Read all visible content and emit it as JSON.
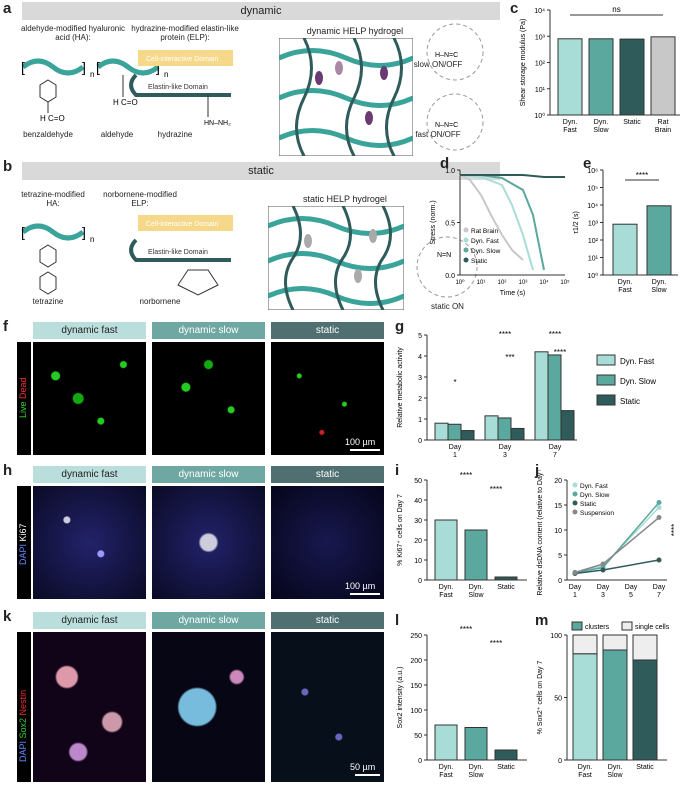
{
  "panels": {
    "a": "a",
    "b": "b",
    "c": "c",
    "d": "d",
    "e": "e",
    "f": "f",
    "g": "g",
    "h": "h",
    "i": "i",
    "j": "j",
    "k": "k",
    "l": "l",
    "m": "m"
  },
  "a": {
    "banner": "dynamic",
    "ha_label": "aldehyde-modified hyaluronic acid (HA):",
    "elp_label": "hydrazine-modified elastin-like protein (ELP):",
    "benzaldehyde": "benzaldehyde",
    "aldehyde": "aldehyde",
    "hydrazine": "hydrazine",
    "cell_domain": "Cell-interactive Domain",
    "elastin_domain": "Elastin-like Domain",
    "hydrogel_title": "dynamic HELP hydrogel",
    "slow": "slow ON/OFF",
    "fast": "fast ON/OFF"
  },
  "b": {
    "banner": "static",
    "ha_label": "tetrazine-modified HA:",
    "elp_label": "norbornene-modified ELP:",
    "tetrazine": "tetrazine",
    "norbornene": "norbornene",
    "cell_domain": "Cell-interactive Domain",
    "elastin_domain": "Elastin-like Domain",
    "hydrogel_title": "static HELP hydrogel",
    "static_on": "static ON"
  },
  "image_headers": {
    "fast": "dynamic fast",
    "slow": "dynamic slow",
    "static": "static"
  },
  "f": {
    "live": "Live",
    "dead": "Dead",
    "scale": "100 µm"
  },
  "h": {
    "dapi": "DAPI",
    "ki67": "Ki67",
    "scale": "100 µm"
  },
  "k": {
    "dapi": "DAPI",
    "sox2": "Sox2",
    "nestin": "Nestin",
    "scale": "50 µm"
  },
  "colors": {
    "fast": "#a8dcd6",
    "slow": "#5aa89e",
    "static": "#2f5b5b",
    "rat": "#c8c8c8",
    "banner": "#d9d9d9",
    "header_fast": "#b9dedb",
    "header_slow": "#6fa8a3",
    "header_static": "#4f6f70"
  },
  "chart_data": [
    {
      "id": "c",
      "type": "bar",
      "ylabel": "Shear storage modulus (Pa)",
      "log": true,
      "ylim": [
        1,
        10000
      ],
      "yticks": [
        "10⁰",
        "10¹",
        "10²",
        "10³",
        "10⁴"
      ],
      "categories": [
        "Dyn. Fast",
        "Dyn. Slow",
        "Static",
        "Rat Brain"
      ],
      "values": [
        800,
        800,
        780,
        950
      ],
      "annotation": "ns"
    },
    {
      "id": "d",
      "type": "line",
      "xlabel": "Time (s)",
      "ylabel": "Stress (norm.)",
      "yticks": [
        "0.0",
        "0.5",
        "1.0"
      ],
      "xticks": [
        "10⁰",
        "10¹",
        "10²",
        "10³",
        "10⁴",
        "10⁵"
      ],
      "series": [
        {
          "name": "Rat Brain",
          "x": [
            1,
            3,
            10,
            30,
            100,
            300,
            1000
          ],
          "y": [
            1.0,
            0.95,
            0.8,
            0.6,
            0.4,
            0.25,
            0.15
          ]
        },
        {
          "name": "Dyn. Fast",
          "x": [
            1,
            10,
            100,
            300,
            1000,
            3000
          ],
          "y": [
            1.0,
            0.98,
            0.9,
            0.7,
            0.4,
            0.05
          ]
        },
        {
          "name": "Dyn. Slow",
          "x": [
            1,
            10,
            100,
            1000,
            3000,
            10000
          ],
          "y": [
            1.0,
            1.0,
            0.97,
            0.85,
            0.6,
            0.05
          ]
        },
        {
          "name": "Static",
          "x": [
            1,
            10,
            100,
            1000,
            10000,
            100000
          ],
          "y": [
            1.0,
            1.0,
            1.0,
            1.0,
            0.98,
            0.98
          ]
        }
      ]
    },
    {
      "id": "e",
      "type": "bar",
      "ylabel": "τ1/2 (s)",
      "log": true,
      "ylim": [
        1,
        1000000
      ],
      "yticks": [
        "10⁰",
        "10¹",
        "10²",
        "10³",
        "10⁴",
        "10⁵",
        "10⁶"
      ],
      "categories": [
        "Dyn. Fast",
        "Dyn. Slow"
      ],
      "values": [
        800,
        9000
      ],
      "annotation": "****"
    },
    {
      "id": "g",
      "type": "bar",
      "ylabel": "Relative metabolic activity",
      "ylim": [
        0,
        5
      ],
      "yticks": [
        "0",
        "1",
        "2",
        "3",
        "4",
        "5"
      ],
      "categories": [
        "Day 1",
        "Day 3",
        "Day 7"
      ],
      "series": [
        {
          "name": "Dyn. Fast",
          "values": [
            0.8,
            1.15,
            4.2
          ]
        },
        {
          "name": "Dyn. Slow",
          "values": [
            0.75,
            1.05,
            4.05
          ]
        },
        {
          "name": "Static",
          "values": [
            0.45,
            0.55,
            1.4
          ]
        }
      ],
      "annotations": [
        "*",
        "****",
        "***",
        "****",
        "****"
      ]
    },
    {
      "id": "i",
      "type": "bar",
      "ylabel": "% Ki67⁺ cells on Day 7",
      "ylim": [
        0,
        50
      ],
      "yticks": [
        "0",
        "10",
        "20",
        "30",
        "40",
        "50"
      ],
      "categories": [
        "Dyn. Fast",
        "Dyn. Slow",
        "Static"
      ],
      "values": [
        30,
        25,
        1.5
      ],
      "annotations": [
        "****",
        "****"
      ]
    },
    {
      "id": "j",
      "type": "line",
      "ylabel": "Relative dsDNA content (relative to Day 0)",
      "ylim": [
        0,
        20
      ],
      "yticks": [
        "0",
        "5",
        "10",
        "15",
        "20"
      ],
      "categories": [
        "Day 1",
        "Day 3",
        "Day 5",
        "Day 7"
      ],
      "series": [
        {
          "name": "Dyn. Fast",
          "values": [
            1.5,
            2.8,
            null,
            14.5
          ]
        },
        {
          "name": "Dyn. Slow",
          "values": [
            1.5,
            2.5,
            null,
            15.5
          ]
        },
        {
          "name": "Static",
          "values": [
            1.3,
            2.0,
            null,
            4.0
          ]
        },
        {
          "name": "Suspension",
          "values": [
            1.5,
            3.2,
            null,
            12.5
          ]
        }
      ],
      "annotation": "****"
    },
    {
      "id": "l",
      "type": "bar",
      "ylabel": "Sox2 intensity (a.u.)",
      "ylim": [
        0,
        250
      ],
      "yticks": [
        "0",
        "50",
        "100",
        "150",
        "200",
        "250"
      ],
      "categories": [
        "Dyn. Fast",
        "Dyn. Slow",
        "Static"
      ],
      "values": [
        70,
        65,
        20
      ],
      "annotations": [
        "****",
        "****"
      ]
    },
    {
      "id": "m",
      "type": "bar",
      "ylabel": "% Sox2⁺ cells on Day 7",
      "ylim": [
        0,
        100
      ],
      "yticks": [
        "0",
        "50",
        "100"
      ],
      "categories": [
        "Dyn. Fast",
        "Dyn. Slow",
        "Static"
      ],
      "series": [
        {
          "name": "clusters",
          "values": [
            85,
            88,
            80
          ]
        },
        {
          "name": "single cells",
          "values": [
            15,
            12,
            20
          ]
        }
      ]
    }
  ]
}
